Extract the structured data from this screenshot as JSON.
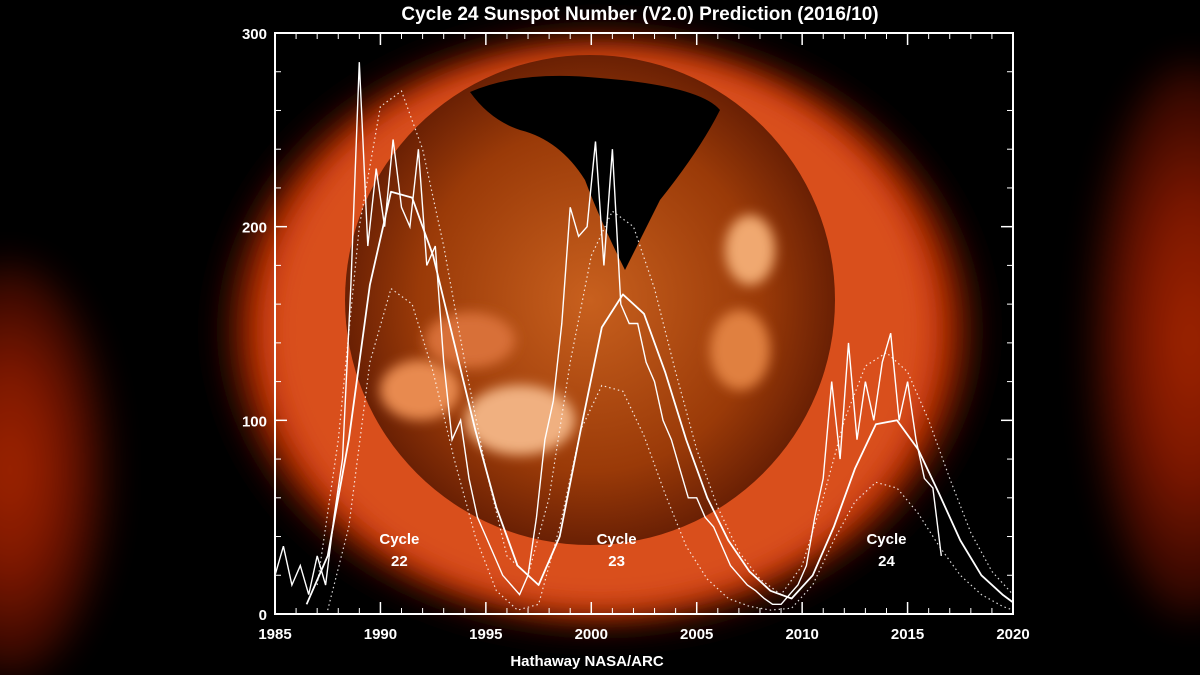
{
  "chart_data": {
    "type": "line",
    "title": "Cycle 24 Sunspot Number (V2.0) Prediction (2016/10)",
    "credit": "Hathaway  NASA/ARC",
    "xlim": [
      1985,
      2020
    ],
    "ylim": [
      0,
      300
    ],
    "x_ticks": [
      "1985",
      "1990",
      "1995",
      "2000",
      "2005",
      "2010",
      "2015",
      "2020"
    ],
    "y_ticks": [
      "0",
      "100",
      "200",
      "300"
    ],
    "grid": false,
    "background": "solar X-ray image (Yohkoh)",
    "colors": {
      "line": "#ffffff",
      "corona": "#e0481a",
      "background": "#000000"
    },
    "annotations": [
      {
        "line1": "Cycle",
        "line2": "22",
        "x": 1990.9,
        "y": 30
      },
      {
        "line1": "Cycle",
        "line2": "23",
        "x": 2001.2,
        "y": 30
      },
      {
        "line1": "Cycle",
        "line2": "24",
        "x": 2014.0,
        "y": 30
      }
    ],
    "series": [
      {
        "role": "monthly sunspot number",
        "style": "solid-jagged",
        "x": [
          1985.0,
          1985.4,
          1985.8,
          1986.2,
          1986.6,
          1987.0,
          1987.4,
          1987.8,
          1988.2,
          1988.6,
          1989.0,
          1989.4,
          1989.8,
          1990.2,
          1990.6,
          1991.0,
          1991.4,
          1991.8,
          1992.2,
          1992.6,
          1993.0,
          1993.4,
          1993.8,
          1994.2,
          1994.6,
          1995.0,
          1995.4,
          1995.8,
          1996.2,
          1996.6,
          1997.0,
          1997.4,
          1997.8,
          1998.2,
          1998.6,
          1999.0,
          1999.4,
          1999.8,
          2000.2,
          2000.6,
          2001.0,
          2001.4,
          2001.8,
          2002.2,
          2002.6,
          2003.0,
          2003.4,
          2003.8,
          2004.2,
          2004.6,
          2005.0,
          2005.4,
          2005.8,
          2006.2,
          2006.6,
          2007.0,
          2007.4,
          2007.8,
          2008.2,
          2008.6,
          2009.0,
          2009.4,
          2009.8,
          2010.2,
          2010.6,
          2011.0,
          2011.4,
          2011.8,
          2012.2,
          2012.6,
          2013.0,
          2013.4,
          2013.8,
          2014.2,
          2014.6,
          2015.0,
          2015.4,
          2015.8,
          2016.2,
          2016.6
        ],
        "values": [
          20,
          35,
          15,
          25,
          10,
          30,
          15,
          50,
          80,
          170,
          285,
          190,
          230,
          200,
          245,
          210,
          200,
          240,
          180,
          190,
          130,
          90,
          100,
          70,
          50,
          40,
          30,
          20,
          15,
          10,
          20,
          50,
          90,
          110,
          150,
          210,
          195,
          200,
          244,
          180,
          240,
          160,
          150,
          150,
          130,
          120,
          100,
          90,
          75,
          60,
          60,
          50,
          45,
          35,
          25,
          20,
          15,
          12,
          8,
          5,
          5,
          10,
          15,
          25,
          50,
          70,
          120,
          80,
          140,
          90,
          120,
          100,
          130,
          145,
          100,
          120,
          90,
          70,
          65,
          30
        ]
      },
      {
        "role": "fitted curve",
        "style": "solid-smooth",
        "x": [
          1986.5,
          1987.5,
          1988.5,
          1989.5,
          1990.5,
          1991.5,
          1992.5,
          1993.5,
          1994.5,
          1995.5,
          1996.5,
          1997.5,
          1998.5,
          1999.5,
          2000.5,
          2001.5,
          2002.5,
          2003.5,
          2004.5,
          2005.5,
          2006.5,
          2007.5,
          2008.5,
          2009.5,
          2010.5,
          2011.5,
          2012.5,
          2013.5,
          2014.5,
          2015.5,
          2016.5,
          2017.5,
          2018.5,
          2019.5,
          2020.0
        ],
        "values": [
          5,
          30,
          90,
          170,
          218,
          215,
          185,
          140,
          95,
          55,
          25,
          15,
          40,
          95,
          148,
          165,
          155,
          125,
          90,
          60,
          38,
          22,
          12,
          8,
          20,
          45,
          75,
          98,
          100,
          85,
          62,
          38,
          20,
          10,
          6
        ]
      },
      {
        "role": "prediction upper bound",
        "style": "dotted",
        "x": [
          1987.0,
          1988.0,
          1989.0,
          1990.0,
          1991.0,
          1992.0,
          1993.0,
          1994.0,
          1995.0,
          1996.0,
          1997.0,
          1998.0,
          1999.0,
          2000.0,
          2001.0,
          2002.0,
          2003.0,
          2004.0,
          2005.0,
          2006.0,
          2007.0,
          2008.0,
          2009.0,
          2010.0,
          2011.0,
          2012.0,
          2013.0,
          2014.0,
          2015.0,
          2016.0,
          2017.0,
          2018.0,
          2019.0,
          2020.0
        ],
        "values": [
          15,
          90,
          200,
          262,
          270,
          240,
          190,
          130,
          75,
          30,
          20,
          60,
          130,
          185,
          208,
          200,
          168,
          125,
          85,
          55,
          32,
          18,
          10,
          25,
          60,
          100,
          128,
          135,
          125,
          100,
          70,
          42,
          22,
          10
        ]
      },
      {
        "role": "prediction lower bound",
        "style": "dotted",
        "x": [
          1987.5,
          1988.5,
          1989.5,
          1990.5,
          1991.5,
          1992.5,
          1993.5,
          1994.5,
          1995.5,
          1996.5,
          1997.5,
          1998.5,
          1999.5,
          2000.5,
          2001.5,
          2002.5,
          2003.5,
          2004.5,
          2005.5,
          2006.5,
          2007.5,
          2008.5,
          2009.5,
          2010.5,
          2011.5,
          2012.5,
          2013.5,
          2014.5,
          2015.5,
          2016.5,
          2017.5,
          2018.5,
          2019.5,
          2020.0
        ],
        "values": [
          2,
          45,
          130,
          168,
          160,
          125,
          80,
          40,
          12,
          2,
          5,
          45,
          95,
          118,
          115,
          92,
          62,
          35,
          18,
          8,
          4,
          2,
          3,
          15,
          38,
          58,
          68,
          65,
          52,
          35,
          20,
          10,
          4,
          2
        ]
      }
    ]
  }
}
